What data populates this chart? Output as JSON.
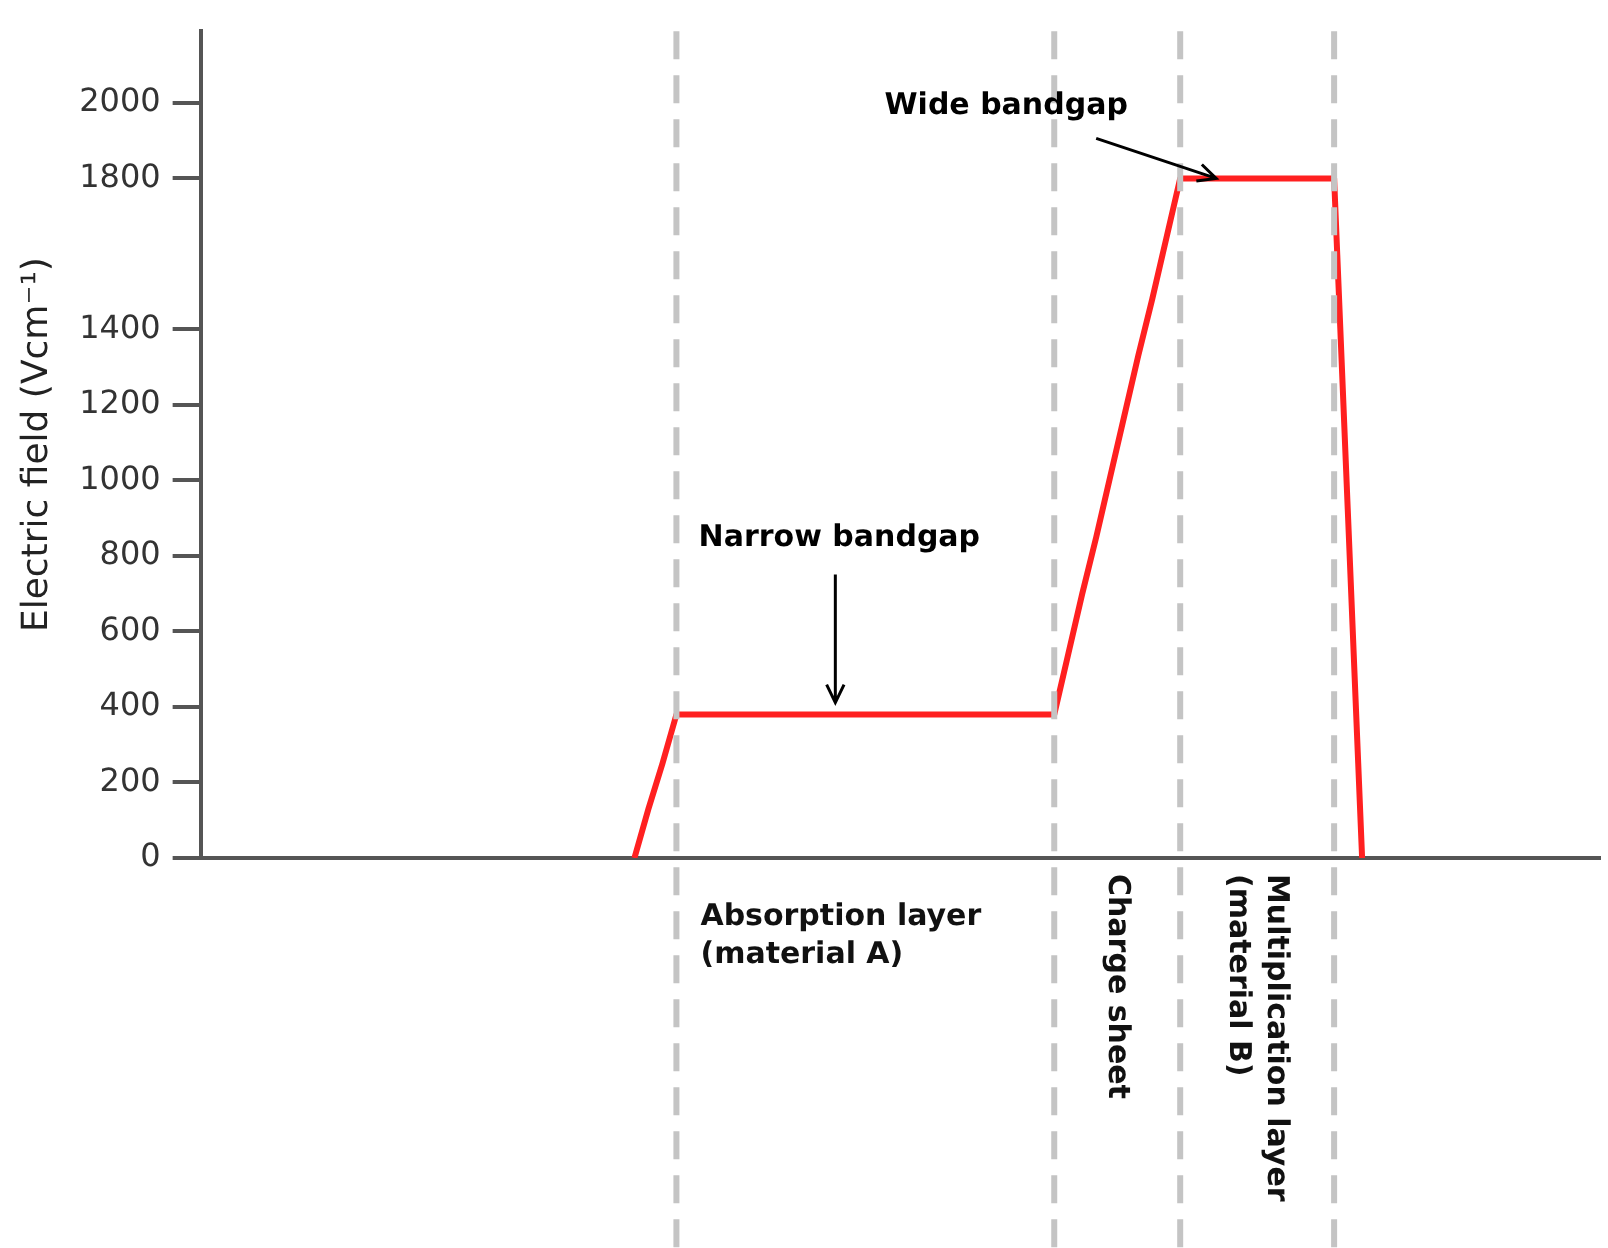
{
  "chart_data": {
    "type": "line",
    "ylabel": "Electric field (Vcm⁻¹)",
    "categories": [
      null,
      null,
      null,
      null,
      null,
      null,
      null,
      null,
      null,
      null,
      null,
      null,
      null,
      null,
      null,
      null,
      null,
      null,
      null,
      null,
      null,
      null,
      null,
      null,
      null,
      null,
      null,
      null,
      null,
      null,
      null,
      null,
      null,
      null,
      null,
      null,
      null,
      null,
      null,
      null,
      null,
      null,
      null,
      null,
      null,
      null,
      null,
      null,
      null,
      null,
      null,
      null,
      null,
      null,
      null,
      null,
      null,
      null,
      null,
      null,
      null,
      null,
      null,
      null,
      null,
      null,
      null,
      null,
      null,
      null,
      null,
      null,
      null,
      null,
      null,
      null,
      null,
      null,
      null,
      null,
      null,
      null,
      null,
      null,
      null,
      null,
      null,
      null,
      null,
      null,
      null,
      null,
      null,
      null,
      null,
      null,
      null,
      null,
      null,
      null,
      null
    ],
    "series": [
      {
        "color": "#ff2020",
        "values": [
          null,
          null,
          null,
          null,
          null,
          null,
          null,
          null,
          null,
          null,
          null,
          null,
          null,
          null,
          null,
          null,
          null,
          null,
          null,
          null,
          null,
          null,
          null,
          null,
          null,
          null,
          null,
          null,
          null,
          null,
          null,
          0,
          130,
          250,
          380,
          380,
          380,
          380,
          380,
          380,
          380,
          380,
          380,
          380,
          380,
          380,
          380,
          380,
          380,
          380,
          380,
          380,
          380,
          380,
          380,
          380,
          380,
          380,
          380,
          380,
          380,
          380,
          540,
          700,
          850,
          1010,
          1170,
          1330,
          1480,
          1640,
          1800,
          1800,
          1800,
          1800,
          1800,
          1800,
          1800,
          1800,
          1800,
          1800,
          1800,
          1800,
          900,
          0,
          null,
          null,
          null,
          null,
          null,
          null,
          null,
          null,
          null,
          null,
          null,
          null,
          null,
          null,
          null,
          null,
          null
        ]
      }
    ],
    "ylim": [
      0,
      2190
    ],
    "yticks": [
      0,
      200,
      400,
      600,
      800,
      1000,
      1200,
      1400,
      1800,
      2000
    ],
    "tick_labels": "y",
    "grid": "x",
    "marker": "none",
    "line_style": "solid",
    "annotations": [
      "Narrow bandgap",
      "Wide bandgap",
      "Absorption layer\n(material A)",
      "Charge sheet",
      "Multiplication layer\n(material B)"
    ]
  }
}
